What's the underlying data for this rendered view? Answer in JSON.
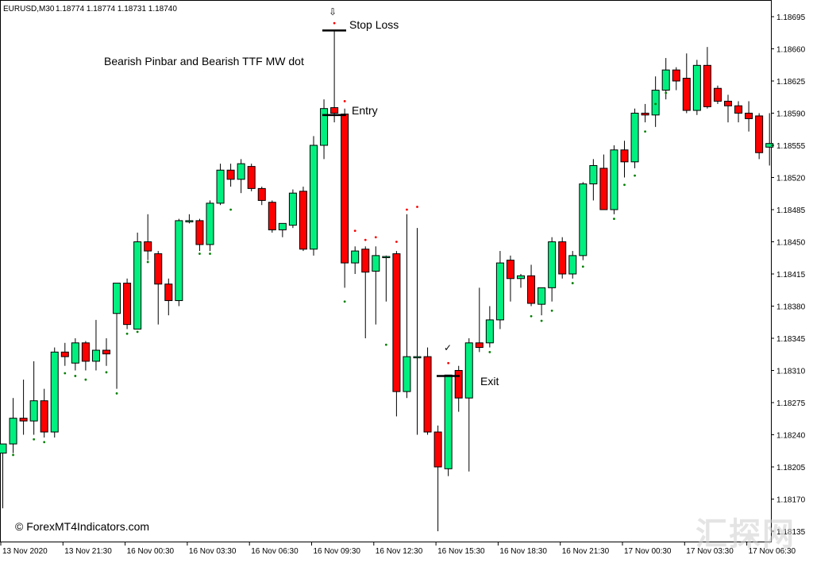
{
  "header": {
    "symbol": "EURUSD,M30",
    "ohlc": "1.18774 1.18774 1.18731 1.18740"
  },
  "annotations": {
    "title": "Bearish Pinbar and Bearish TTF MW dot",
    "stop_loss": "Stop Loss",
    "entry": "Entry",
    "exit": "Exit",
    "stop_arrow": "⇩",
    "exit_check": "✓",
    "copyright": "© ForexMT4Indicators.com",
    "watermark": "汇探网"
  },
  "colors": {
    "bull": "#00f080",
    "bear": "#ff0000",
    "wick": "#000000",
    "buy_dot": "#008000",
    "sell_dot": "#ff0000",
    "background": "#ffffff"
  },
  "chart_data": {
    "type": "candlestick",
    "title": "Bearish Pinbar and Bearish TTF MW dot",
    "symbol": "EURUSD",
    "timeframe": "M30",
    "ylim": [
      1.1814,
      1.187
    ],
    "y_ticks": [
      "1.18695",
      "1.18660",
      "1.18625",
      "1.18590",
      "1.18555",
      "1.18520",
      "1.18485",
      "1.18450",
      "1.18415",
      "1.18380",
      "1.18345",
      "1.18310",
      "1.18275",
      "1.18240",
      "1.18205",
      "1.18170",
      "1.18135"
    ],
    "x_ticks": [
      "13 Nov 2020",
      "13 Nov 21:30",
      "16 Nov 00:30",
      "16 Nov 03:30",
      "16 Nov 06:30",
      "16 Nov 09:30",
      "16 Nov 12:30",
      "16 Nov 15:30",
      "16 Nov 18:30",
      "16 Nov 21:30",
      "17 Nov 00:30",
      "17 Nov 03:30",
      "17 Nov 06:30"
    ],
    "candles": [
      {
        "o": 1.1822,
        "h": 1.1823,
        "l": 1.1816,
        "c": 1.1823
      },
      {
        "o": 1.1823,
        "h": 1.1828,
        "l": 1.1822,
        "c": 1.18258
      },
      {
        "o": 1.18258,
        "h": 1.183,
        "l": 1.1824,
        "c": 1.18255
      },
      {
        "o": 1.18255,
        "h": 1.1832,
        "l": 1.1824,
        "c": 1.18277
      },
      {
        "o": 1.18277,
        "h": 1.1829,
        "l": 1.18237,
        "c": 1.18243
      },
      {
        "o": 1.18243,
        "h": 1.18335,
        "l": 1.18237,
        "c": 1.1833
      },
      {
        "o": 1.1833,
        "h": 1.1834,
        "l": 1.18315,
        "c": 1.18325
      },
      {
        "o": 1.18318,
        "h": 1.18345,
        "l": 1.1831,
        "c": 1.1834
      },
      {
        "o": 1.1834,
        "h": 1.18342,
        "l": 1.1831,
        "c": 1.1832
      },
      {
        "o": 1.1832,
        "h": 1.18365,
        "l": 1.1831,
        "c": 1.18332
      },
      {
        "o": 1.18332,
        "h": 1.18345,
        "l": 1.18315,
        "c": 1.18328
      },
      {
        "o": 1.18372,
        "h": 1.18405,
        "l": 1.1829,
        "c": 1.18405
      },
      {
        "o": 1.18405,
        "h": 1.1841,
        "l": 1.18355,
        "c": 1.1836
      },
      {
        "o": 1.18355,
        "h": 1.1846,
        "l": 1.18355,
        "c": 1.1845
      },
      {
        "o": 1.1845,
        "h": 1.1848,
        "l": 1.1843,
        "c": 1.1844
      },
      {
        "o": 1.18437,
        "h": 1.1844,
        "l": 1.1836,
        "c": 1.18404
      },
      {
        "o": 1.18404,
        "h": 1.1841,
        "l": 1.1837,
        "c": 1.18386
      },
      {
        "o": 1.18386,
        "h": 1.18475,
        "l": 1.1838,
        "c": 1.18473
      },
      {
        "o": 1.18473,
        "h": 1.1848,
        "l": 1.1847,
        "c": 1.18473
      },
      {
        "o": 1.18473,
        "h": 1.18475,
        "l": 1.1844,
        "c": 1.18447
      },
      {
        "o": 1.18447,
        "h": 1.18495,
        "l": 1.1844,
        "c": 1.18492
      },
      {
        "o": 1.18492,
        "h": 1.18535,
        "l": 1.1849,
        "c": 1.18528
      },
      {
        "o": 1.18528,
        "h": 1.18535,
        "l": 1.1851,
        "c": 1.18518
      },
      {
        "o": 1.18518,
        "h": 1.1854,
        "l": 1.18503,
        "c": 1.18535
      },
      {
        "o": 1.18532,
        "h": 1.18535,
        "l": 1.18505,
        "c": 1.18508
      },
      {
        "o": 1.18508,
        "h": 1.1851,
        "l": 1.1849,
        "c": 1.18495
      },
      {
        "o": 1.18493,
        "h": 1.18495,
        "l": 1.1846,
        "c": 1.18463
      },
      {
        "o": 1.18463,
        "h": 1.1847,
        "l": 1.18455,
        "c": 1.1847
      },
      {
        "o": 1.18468,
        "h": 1.18507,
        "l": 1.18465,
        "c": 1.18503
      },
      {
        "o": 1.18505,
        "h": 1.1851,
        "l": 1.1844,
        "c": 1.18442
      },
      {
        "o": 1.18442,
        "h": 1.18565,
        "l": 1.18435,
        "c": 1.18555
      },
      {
        "o": 1.18555,
        "h": 1.18605,
        "l": 1.1854,
        "c": 1.18595
      },
      {
        "o": 1.18596,
        "h": 1.1868,
        "l": 1.1858,
        "c": 1.1859
      },
      {
        "o": 1.18589,
        "h": 1.18595,
        "l": 1.184,
        "c": 1.18427
      },
      {
        "o": 1.18427,
        "h": 1.18445,
        "l": 1.18415,
        "c": 1.1844
      },
      {
        "o": 1.18442,
        "h": 1.18445,
        "l": 1.18345,
        "c": 1.18417
      },
      {
        "o": 1.18418,
        "h": 1.18445,
        "l": 1.1836,
        "c": 1.18435
      },
      {
        "o": 1.18434,
        "h": 1.18435,
        "l": 1.18385,
        "c": 1.18434
      },
      {
        "o": 1.18437,
        "h": 1.1844,
        "l": 1.1826,
        "c": 1.18287
      },
      {
        "o": 1.18287,
        "h": 1.1848,
        "l": 1.1828,
        "c": 1.18325
      },
      {
        "o": 1.18325,
        "h": 1.18465,
        "l": 1.1824,
        "c": 1.18325
      },
      {
        "o": 1.18325,
        "h": 1.18335,
        "l": 1.1824,
        "c": 1.18243
      },
      {
        "o": 1.18243,
        "h": 1.1825,
        "l": 1.18135,
        "c": 1.18205
      },
      {
        "o": 1.18203,
        "h": 1.18305,
        "l": 1.18195,
        "c": 1.18305
      },
      {
        "o": 1.1831,
        "h": 1.18315,
        "l": 1.18265,
        "c": 1.1828
      },
      {
        "o": 1.1828,
        "h": 1.18345,
        "l": 1.182,
        "c": 1.1834
      },
      {
        "o": 1.1834,
        "h": 1.184,
        "l": 1.1833,
        "c": 1.18335
      },
      {
        "o": 1.1834,
        "h": 1.1838,
        "l": 1.18335,
        "c": 1.18365
      },
      {
        "o": 1.18365,
        "h": 1.1844,
        "l": 1.18355,
        "c": 1.18427
      },
      {
        "o": 1.1843,
        "h": 1.18435,
        "l": 1.18385,
        "c": 1.1841
      },
      {
        "o": 1.1841,
        "h": 1.18415,
        "l": 1.184,
        "c": 1.18413
      },
      {
        "o": 1.18413,
        "h": 1.18425,
        "l": 1.1838,
        "c": 1.18383
      },
      {
        "o": 1.18382,
        "h": 1.18395,
        "l": 1.1837,
        "c": 1.184
      },
      {
        "o": 1.184,
        "h": 1.18455,
        "l": 1.18385,
        "c": 1.1845
      },
      {
        "o": 1.1845,
        "h": 1.18455,
        "l": 1.1841,
        "c": 1.18415
      },
      {
        "o": 1.18415,
        "h": 1.1844,
        "l": 1.1841,
        "c": 1.18435
      },
      {
        "o": 1.18435,
        "h": 1.18515,
        "l": 1.1843,
        "c": 1.18513
      },
      {
        "o": 1.18513,
        "h": 1.1854,
        "l": 1.18495,
        "c": 1.18533
      },
      {
        "o": 1.1853,
        "h": 1.18545,
        "l": 1.18485,
        "c": 1.18485
      },
      {
        "o": 1.18485,
        "h": 1.18555,
        "l": 1.1848,
        "c": 1.1855
      },
      {
        "o": 1.1855,
        "h": 1.1856,
        "l": 1.1852,
        "c": 1.18537
      },
      {
        "o": 1.18537,
        "h": 1.18595,
        "l": 1.1853,
        "c": 1.1859
      },
      {
        "o": 1.1859,
        "h": 1.186,
        "l": 1.1858,
        "c": 1.18588
      },
      {
        "o": 1.18588,
        "h": 1.1863,
        "l": 1.18575,
        "c": 1.18615
      },
      {
        "o": 1.18615,
        "h": 1.1865,
        "l": 1.18605,
        "c": 1.18637
      },
      {
        "o": 1.18637,
        "h": 1.1864,
        "l": 1.18615,
        "c": 1.18625
      },
      {
        "o": 1.18628,
        "h": 1.18655,
        "l": 1.1859,
        "c": 1.18593
      },
      {
        "o": 1.18593,
        "h": 1.18648,
        "l": 1.18588,
        "c": 1.18642
      },
      {
        "o": 1.18642,
        "h": 1.18662,
        "l": 1.18595,
        "c": 1.18597
      },
      {
        "o": 1.18617,
        "h": 1.1862,
        "l": 1.186,
        "c": 1.18603
      },
      {
        "o": 1.18603,
        "h": 1.1861,
        "l": 1.1858,
        "c": 1.18598
      },
      {
        "o": 1.18598,
        "h": 1.18603,
        "l": 1.1858,
        "c": 1.1859
      },
      {
        "o": 1.1859,
        "h": 1.18603,
        "l": 1.1857,
        "c": 1.18584
      },
      {
        "o": 1.18587,
        "h": 1.1859,
        "l": 1.1854,
        "c": 1.18547
      },
      {
        "o": 1.18553,
        "h": 1.1859,
        "l": 1.18533,
        "c": 1.18557
      }
    ],
    "buy_dots": [
      [
        1,
        1.18218
      ],
      [
        3,
        1.18235
      ],
      [
        4,
        1.18232
      ],
      [
        6,
        1.18307
      ],
      [
        7,
        1.18304
      ],
      [
        8,
        1.183
      ],
      [
        10,
        1.18308
      ],
      [
        11,
        1.18285
      ],
      [
        12,
        1.1835
      ],
      [
        13,
        1.18352
      ],
      [
        14,
        1.18428
      ],
      [
        19,
        1.18437
      ],
      [
        20,
        1.18437
      ],
      [
        22,
        1.18485
      ],
      [
        33,
        1.18385
      ],
      [
        37,
        1.18338
      ],
      [
        47,
        1.1833
      ],
      [
        51,
        1.18369
      ],
      [
        52,
        1.18364
      ],
      [
        53,
        1.18375
      ],
      [
        55,
        1.18405
      ],
      [
        56,
        1.18423
      ],
      [
        59,
        1.18475
      ],
      [
        60,
        1.18512
      ],
      [
        61,
        1.18522
      ],
      [
        62,
        1.1857
      ],
      [
        63,
        1.186
      ],
      [
        64,
        1.18612
      ]
    ],
    "sell_dots": [
      [
        32,
        1.18688
      ],
      [
        33,
        1.18603
      ],
      [
        34,
        1.18462
      ],
      [
        35,
        1.18452
      ],
      [
        36,
        1.18455
      ],
      [
        38,
        1.1845
      ],
      [
        39,
        1.18485
      ],
      [
        40,
        1.18488
      ],
      [
        43,
        1.18318
      ]
    ],
    "stop_loss_price": 1.1868,
    "entry_price": 1.18588,
    "exit_price": 1.18304
  }
}
